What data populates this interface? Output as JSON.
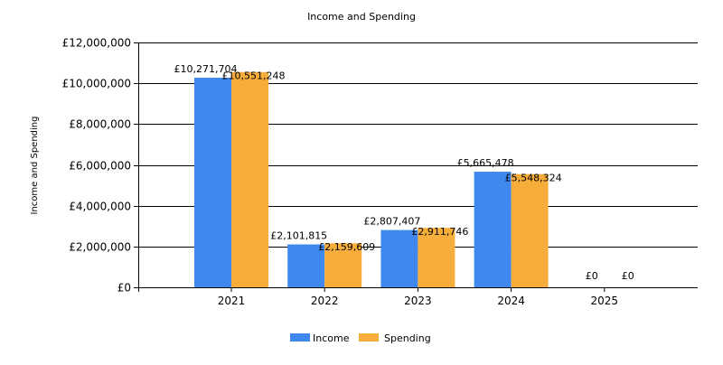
{
  "chart_data": {
    "type": "bar",
    "title": "Income and Spending",
    "xlabel": "",
    "ylabel": "Income and Spending",
    "categories": [
      "2021",
      "2022",
      "2023",
      "2024",
      "2025"
    ],
    "series": [
      {
        "name": "Income",
        "color": "#3f88ee",
        "values": [
          10271704,
          2101815,
          2807407,
          5665478,
          0
        ],
        "labels": [
          "£10,271,704",
          "£2,101,815",
          "£2,807,407",
          "£5,665,478",
          "£0"
        ]
      },
      {
        "name": "Spending",
        "color": "#f7ad3a",
        "values": [
          10551248,
          2159609,
          2911746,
          5548324,
          0
        ],
        "labels": [
          "£10,551,248",
          "£2,159,609",
          "£2,911,746",
          "£5,548,324",
          "£0"
        ]
      }
    ],
    "ylim": [
      0,
      12000000
    ],
    "yticks": [
      0,
      2000000,
      4000000,
      6000000,
      8000000,
      10000000,
      12000000
    ],
    "ytick_labels": [
      "£0",
      "£2,000,000",
      "£4,000,000",
      "£6,000,000",
      "£8,000,000",
      "£10,000,000",
      "£12,000,000"
    ],
    "grid": true,
    "legend_position": "bottom-center"
  }
}
